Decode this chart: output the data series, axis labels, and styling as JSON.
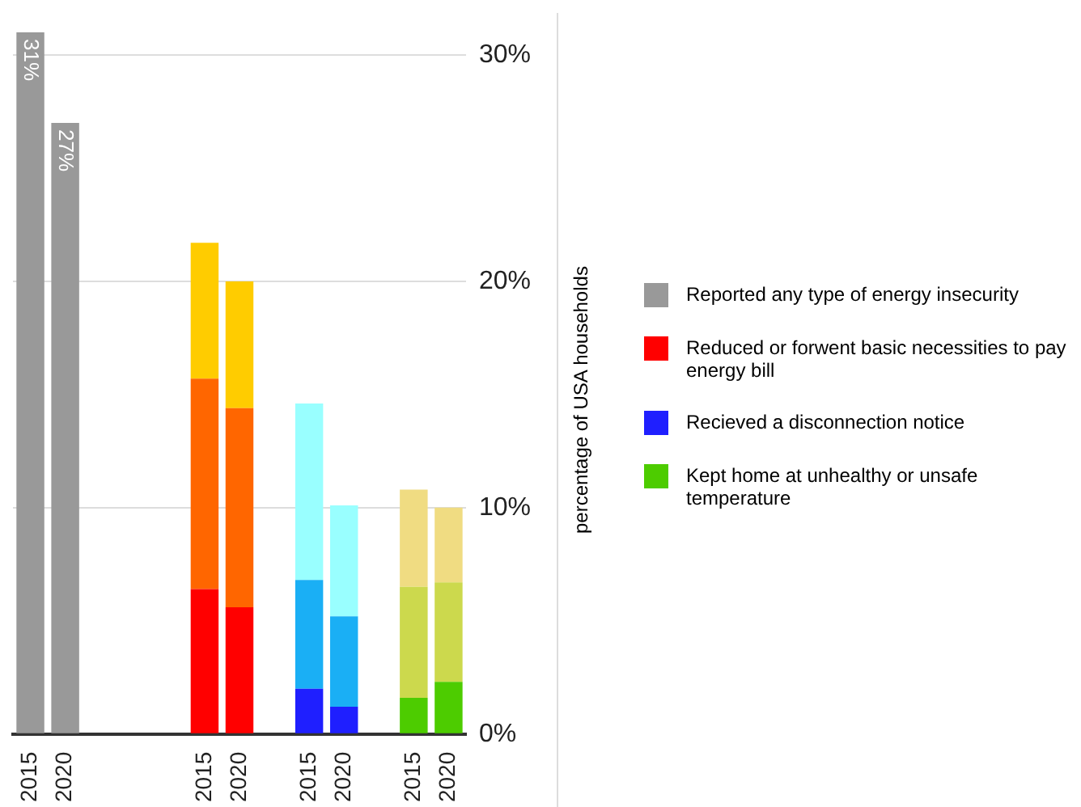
{
  "chart_data": {
    "type": "bar",
    "stacked": true,
    "ylabel": "percentage of USA households",
    "categories": [
      "2015",
      "2020",
      null,
      null,
      null,
      "2015",
      "2020",
      null,
      "2015",
      "2020",
      null,
      "2015",
      "2020"
    ],
    "series": [
      {
        "name": "Reported any type of energy insecurity",
        "color": "#999999",
        "values": [
          31,
          27,
          null,
          null,
          null,
          null,
          null,
          null,
          null,
          null,
          null,
          null,
          null
        ],
        "value_labels": [
          "31%",
          "27%",
          null,
          null,
          null,
          null,
          null,
          null,
          null,
          null,
          null,
          null,
          null
        ]
      },
      {
        "name": "Reduced or forwent basic necessities to pay energy bill",
        "color": "#ff0000",
        "values": [
          null,
          null,
          null,
          null,
          null,
          6.4,
          5.6,
          null,
          null,
          null,
          null,
          null,
          null
        ]
      },
      {
        "color": "#ff6600",
        "values": [
          null,
          null,
          null,
          null,
          null,
          9.3,
          8.8,
          null,
          null,
          null,
          null,
          null,
          null
        ]
      },
      {
        "color": "#ffcc00",
        "values": [
          null,
          null,
          null,
          null,
          null,
          6.0,
          5.6,
          null,
          null,
          null,
          null,
          null,
          null
        ]
      },
      {
        "name": "Recieved a disconnection notice",
        "color": "#1f1fff",
        "values": [
          null,
          null,
          null,
          null,
          null,
          null,
          null,
          null,
          2.0,
          1.2,
          null,
          null,
          null
        ]
      },
      {
        "color": "#1aaff5",
        "values": [
          null,
          null,
          null,
          null,
          null,
          null,
          null,
          null,
          4.8,
          4.0,
          null,
          null,
          null
        ]
      },
      {
        "color": "#99ffff",
        "values": [
          null,
          null,
          null,
          null,
          null,
          null,
          null,
          null,
          7.8,
          4.9,
          null,
          null,
          null
        ]
      },
      {
        "name": "Kept home at unhealthy or unsafe temperature",
        "color": "#4dcc00",
        "values": [
          null,
          null,
          null,
          null,
          null,
          null,
          null,
          null,
          null,
          null,
          null,
          1.6,
          2.3
        ]
      },
      {
        "color": "#ccd94d",
        "values": [
          null,
          null,
          null,
          null,
          null,
          null,
          null,
          null,
          null,
          null,
          null,
          4.9,
          4.4
        ]
      },
      {
        "color": "#f0dc82",
        "values": [
          null,
          null,
          null,
          null,
          null,
          null,
          null,
          null,
          null,
          null,
          null,
          4.3,
          3.3
        ]
      }
    ],
    "ylim": [
      0,
      31
    ],
    "yticks": [
      {
        "value": 0,
        "label": "0%"
      },
      {
        "value": 10,
        "label": "10%"
      },
      {
        "value": 20,
        "label": "20%"
      },
      {
        "value": 30,
        "label": "30%"
      }
    ],
    "grid": "y",
    "legend": "right"
  }
}
